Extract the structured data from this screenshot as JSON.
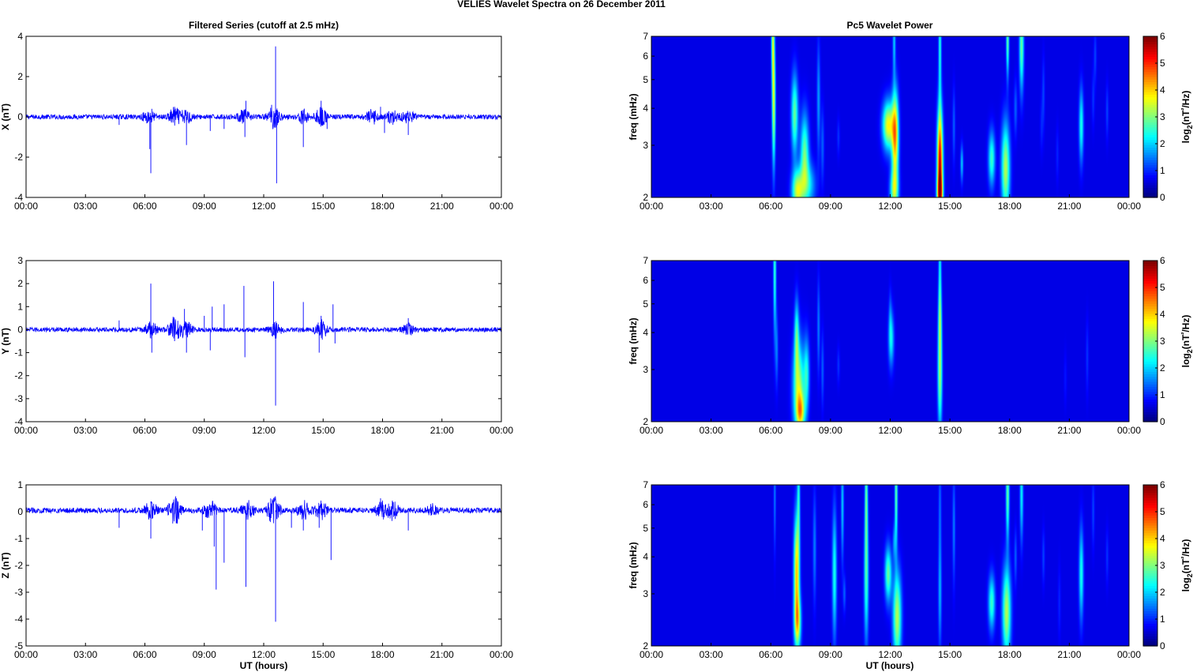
{
  "figure": {
    "title": "VELIES Wavelet Spectra on 26 December  2011",
    "left_title": "Filtered Series (cutoff at 2.5 mHz)",
    "right_title": "Pc5 Wavelet Power",
    "xlabel": "UT (hours)"
  },
  "chart_data": [
    {
      "type": "line",
      "component": "X",
      "ylabel": "X (nT)",
      "ylim": [
        -4,
        4
      ],
      "yticks": [
        -4,
        -2,
        0,
        2,
        4
      ],
      "xlim": [
        0,
        24
      ],
      "xticks": [
        "00:00",
        "03:00",
        "06:00",
        "09:00",
        "12:00",
        "15:00",
        "18:00",
        "21:00",
        "00:00"
      ],
      "color": "#0000ff",
      "baseline": 0.0,
      "noise_amp": 0.12,
      "active_bursts": [
        [
          6.2,
          0.3
        ],
        [
          7.5,
          0.4
        ],
        [
          8.1,
          0.3
        ],
        [
          11.0,
          0.3
        ],
        [
          12.5,
          0.5
        ],
        [
          14.0,
          0.3
        ],
        [
          14.9,
          0.4
        ],
        [
          17.5,
          0.3
        ],
        [
          18.5,
          0.3
        ],
        [
          19.3,
          0.3
        ]
      ],
      "spikes": [
        [
          4.7,
          -0.4
        ],
        [
          6.25,
          -1.6
        ],
        [
          6.3,
          -2.8
        ],
        [
          6.35,
          0.4
        ],
        [
          7.5,
          0.5
        ],
        [
          8.1,
          -1.4
        ],
        [
          9.3,
          -0.7
        ],
        [
          10.0,
          -0.6
        ],
        [
          11.05,
          -1.0
        ],
        [
          11.1,
          0.8
        ],
        [
          12.4,
          0.6
        ],
        [
          12.6,
          3.5
        ],
        [
          12.65,
          -3.3
        ],
        [
          14.0,
          -1.5
        ],
        [
          14.9,
          0.8
        ],
        [
          15.2,
          -0.6
        ],
        [
          17.9,
          0.5
        ],
        [
          18.1,
          -0.8
        ],
        [
          19.3,
          -0.9
        ]
      ]
    },
    {
      "type": "line",
      "component": "Y",
      "ylabel": "Y (nT)",
      "ylim": [
        -4,
        3
      ],
      "yticks": [
        -4,
        -3,
        -2,
        -1,
        0,
        1,
        2,
        3
      ],
      "xlim": [
        0,
        24
      ],
      "xticks": [
        "00:00",
        "03:00",
        "06:00",
        "09:00",
        "12:00",
        "15:00",
        "18:00",
        "21:00",
        "00:00"
      ],
      "color": "#0000ff",
      "baseline": 0.0,
      "noise_amp": 0.1,
      "active_bursts": [
        [
          6.3,
          0.3
        ],
        [
          7.5,
          0.5
        ],
        [
          8.1,
          0.3
        ],
        [
          12.6,
          0.3
        ],
        [
          14.9,
          0.4
        ],
        [
          19.3,
          0.2
        ]
      ],
      "spikes": [
        [
          4.7,
          0.4
        ],
        [
          6.3,
          2.0
        ],
        [
          6.35,
          -1.0
        ],
        [
          7.5,
          -0.5
        ],
        [
          8.0,
          0.9
        ],
        [
          8.1,
          -1.0
        ],
        [
          9.0,
          0.6
        ],
        [
          9.3,
          -0.9
        ],
        [
          9.4,
          1.0
        ],
        [
          10.0,
          1.1
        ],
        [
          11.0,
          1.9
        ],
        [
          11.05,
          -1.2
        ],
        [
          12.5,
          2.1
        ],
        [
          12.6,
          -3.3
        ],
        [
          14.0,
          1.2
        ],
        [
          14.8,
          -1.0
        ],
        [
          14.9,
          0.6
        ],
        [
          15.5,
          1.1
        ],
        [
          15.6,
          -0.6
        ],
        [
          19.3,
          0.5
        ]
      ]
    },
    {
      "type": "line",
      "component": "Z",
      "ylabel": "Z (nT)",
      "ylim": [
        -5,
        1
      ],
      "yticks": [
        -5,
        -4,
        -3,
        -2,
        -1,
        0,
        1
      ],
      "xlim": [
        0,
        24
      ],
      "xticks": [
        "00:00",
        "03:00",
        "06:00",
        "09:00",
        "12:00",
        "15:00",
        "18:00",
        "21:00",
        "00:00"
      ],
      "color": "#0000ff",
      "baseline": 0.05,
      "noise_amp": 0.1,
      "active_bursts": [
        [
          6.3,
          0.3
        ],
        [
          7.5,
          0.5
        ],
        [
          9.3,
          0.3
        ],
        [
          11.2,
          0.3
        ],
        [
          12.5,
          0.5
        ],
        [
          14.0,
          0.3
        ],
        [
          14.9,
          0.3
        ],
        [
          17.9,
          0.3
        ],
        [
          18.5,
          0.3
        ],
        [
          20.5,
          0.2
        ]
      ],
      "spikes": [
        [
          4.7,
          -0.6
        ],
        [
          6.3,
          -1.0
        ],
        [
          7.6,
          0.5
        ],
        [
          8.9,
          -0.7
        ],
        [
          9.5,
          -1.3
        ],
        [
          9.6,
          -2.9
        ],
        [
          10.0,
          -1.9
        ],
        [
          11.1,
          -2.8
        ],
        [
          12.5,
          0.5
        ],
        [
          12.6,
          -4.1
        ],
        [
          13.4,
          -0.6
        ],
        [
          14.0,
          -0.7
        ],
        [
          14.8,
          -0.6
        ],
        [
          15.4,
          -1.8
        ],
        [
          17.9,
          0.5
        ],
        [
          19.3,
          -0.7
        ]
      ]
    },
    {
      "type": "heatmap",
      "component": "X",
      "ylabel": "freq (mHz)",
      "yscale": "log",
      "ylim": [
        2,
        7
      ],
      "yticks": [
        2,
        3,
        4,
        5,
        6,
        7
      ],
      "xlim": [
        0,
        24
      ],
      "xticks": [
        "00:00",
        "03:00",
        "06:00",
        "09:00",
        "12:00",
        "15:00",
        "18:00",
        "21:00",
        "00:00"
      ],
      "colorbar_label": "log2(nT²/Hz)",
      "clim": [
        0,
        6
      ],
      "clim_ticks": [
        0,
        1,
        2,
        3,
        4,
        5,
        6
      ],
      "blobs": [
        [
          6.15,
          4.2,
          0.06,
          0.35,
          3.2
        ],
        [
          6.1,
          7.0,
          0.05,
          0.25,
          2.5
        ],
        [
          7.2,
          3.8,
          0.12,
          0.22,
          2.5
        ],
        [
          7.35,
          2.1,
          0.2,
          0.12,
          3.2
        ],
        [
          7.7,
          2.8,
          0.15,
          0.22,
          2.5
        ],
        [
          7.9,
          2.2,
          0.25,
          0.12,
          1.6
        ],
        [
          8.4,
          4.3,
          0.06,
          0.3,
          1.2
        ],
        [
          8.6,
          3.0,
          0.06,
          0.2,
          0.8
        ],
        [
          9.4,
          3.2,
          0.05,
          0.1,
          0.5
        ],
        [
          11.9,
          3.5,
          0.2,
          0.13,
          3.5
        ],
        [
          12.25,
          3.2,
          0.12,
          0.25,
          4.0
        ],
        [
          12.2,
          2.1,
          0.15,
          0.12,
          2.5
        ],
        [
          12.2,
          6.8,
          0.05,
          0.2,
          1.5
        ],
        [
          14.5,
          2.6,
          0.1,
          0.3,
          5.5
        ],
        [
          14.5,
          6.5,
          0.05,
          0.3,
          2.0
        ],
        [
          14.5,
          2.05,
          0.1,
          0.1,
          3.0
        ],
        [
          15.2,
          3.5,
          0.05,
          0.2,
          0.8
        ],
        [
          15.6,
          2.6,
          0.05,
          0.1,
          1.5
        ],
        [
          17.1,
          2.7,
          0.12,
          0.15,
          2.2
        ],
        [
          17.8,
          2.5,
          0.15,
          0.25,
          3.0
        ],
        [
          17.9,
          6.8,
          0.05,
          0.2,
          2.5
        ],
        [
          18.3,
          4.0,
          0.06,
          0.15,
          0.8
        ],
        [
          18.6,
          6.5,
          0.08,
          0.25,
          2.5
        ],
        [
          19.7,
          4.5,
          0.05,
          0.2,
          0.6
        ],
        [
          19.6,
          3.5,
          0.05,
          0.15,
          0.4
        ],
        [
          21.6,
          3.5,
          0.08,
          0.2,
          2.0
        ],
        [
          22.2,
          4.3,
          0.05,
          0.15,
          0.5
        ],
        [
          22.3,
          6.0,
          0.05,
          0.15,
          0.6
        ],
        [
          22.9,
          3.9,
          0.05,
          0.15,
          0.6
        ],
        [
          20.4,
          2.8,
          0.05,
          0.15,
          0.4
        ]
      ]
    },
    {
      "type": "heatmap",
      "component": "Y",
      "ylabel": "freq (mHz)",
      "yscale": "log",
      "ylim": [
        2,
        7
      ],
      "yticks": [
        2,
        3,
        4,
        5,
        6,
        7
      ],
      "xlim": [
        0,
        24
      ],
      "xticks": [
        "00:00",
        "03:00",
        "06:00",
        "09:00",
        "12:00",
        "15:00",
        "18:00",
        "21:00",
        "00:00"
      ],
      "colorbar_label": "log2(nT²/Hz)",
      "clim": [
        0,
        6
      ],
      "clim_ticks": [
        0,
        1,
        2,
        3,
        4,
        5,
        6
      ],
      "blobs": [
        [
          6.2,
          6.5,
          0.05,
          0.35,
          2.2
        ],
        [
          6.3,
          3.5,
          0.05,
          0.2,
          1.0
        ],
        [
          7.3,
          3.9,
          0.08,
          0.2,
          2.0
        ],
        [
          7.4,
          2.6,
          0.2,
          0.25,
          3.0
        ],
        [
          7.5,
          2.15,
          0.15,
          0.1,
          2.5
        ],
        [
          7.8,
          2.9,
          0.1,
          0.2,
          1.8
        ],
        [
          8.4,
          4.2,
          0.05,
          0.25,
          1.0
        ],
        [
          8.6,
          3.0,
          0.05,
          0.2,
          0.8
        ],
        [
          9.4,
          3.1,
          0.05,
          0.1,
          0.5
        ],
        [
          12.05,
          3.8,
          0.1,
          0.15,
          1.8
        ],
        [
          12.0,
          4.6,
          0.05,
          0.15,
          0.6
        ],
        [
          14.5,
          2.9,
          0.08,
          0.3,
          2.8
        ],
        [
          14.5,
          4.6,
          0.06,
          0.2,
          2.0
        ],
        [
          14.5,
          7.0,
          0.05,
          0.2,
          1.5
        ],
        [
          21.9,
          3.3,
          0.05,
          0.2,
          0.5
        ],
        [
          20.8,
          2.8,
          0.05,
          0.15,
          0.3
        ]
      ]
    },
    {
      "type": "heatmap",
      "component": "Z",
      "ylabel": "freq (mHz)",
      "yscale": "log",
      "ylim": [
        2,
        7
      ],
      "yticks": [
        2,
        3,
        4,
        5,
        6,
        7
      ],
      "xlim": [
        0,
        24
      ],
      "xticks": [
        "00:00",
        "03:00",
        "06:00",
        "09:00",
        "12:00",
        "15:00",
        "18:00",
        "21:00",
        "00:00"
      ],
      "colorbar_label": "log2(nT²/Hz)",
      "clim": [
        0,
        6
      ],
      "clim_ticks": [
        0,
        1,
        2,
        3,
        4,
        5,
        6
      ],
      "blobs": [
        [
          6.2,
          6.5,
          0.04,
          0.3,
          1.0
        ],
        [
          7.3,
          3.6,
          0.1,
          0.3,
          3.8
        ],
        [
          7.35,
          2.4,
          0.12,
          0.15,
          3.0
        ],
        [
          7.4,
          6.5,
          0.05,
          0.3,
          1.8
        ],
        [
          8.2,
          4.3,
          0.06,
          0.3,
          1.0
        ],
        [
          9.2,
          3.5,
          0.08,
          0.35,
          2.0
        ],
        [
          9.6,
          6.0,
          0.05,
          0.3,
          1.5
        ],
        [
          9.7,
          3.0,
          0.05,
          0.1,
          0.8
        ],
        [
          10.8,
          3.4,
          0.08,
          0.35,
          2.2
        ],
        [
          10.8,
          6.5,
          0.05,
          0.3,
          2.2
        ],
        [
          11.9,
          3.5,
          0.12,
          0.15,
          2.5
        ],
        [
          12.35,
          2.5,
          0.15,
          0.25,
          3.0
        ],
        [
          12.3,
          6.5,
          0.05,
          0.3,
          2.5
        ],
        [
          12.2,
          4.5,
          0.05,
          0.1,
          1.0
        ],
        [
          14.5,
          3.0,
          0.06,
          0.3,
          1.3
        ],
        [
          14.5,
          6.0,
          0.05,
          0.3,
          0.8
        ],
        [
          15.2,
          5.0,
          0.05,
          0.3,
          1.0
        ],
        [
          17.1,
          2.8,
          0.12,
          0.15,
          2.2
        ],
        [
          17.85,
          2.6,
          0.15,
          0.25,
          3.0
        ],
        [
          17.9,
          6.5,
          0.06,
          0.25,
          2.5
        ],
        [
          18.6,
          6.5,
          0.06,
          0.25,
          1.8
        ],
        [
          18.3,
          4.0,
          0.05,
          0.15,
          0.8
        ],
        [
          19.7,
          4.0,
          0.05,
          0.15,
          0.6
        ],
        [
          20.5,
          2.8,
          0.05,
          0.2,
          0.4
        ],
        [
          21.6,
          3.5,
          0.08,
          0.25,
          2.0
        ],
        [
          22.2,
          5.7,
          0.05,
          0.2,
          0.6
        ],
        [
          22.9,
          4.0,
          0.05,
          0.15,
          0.5
        ]
      ]
    }
  ]
}
